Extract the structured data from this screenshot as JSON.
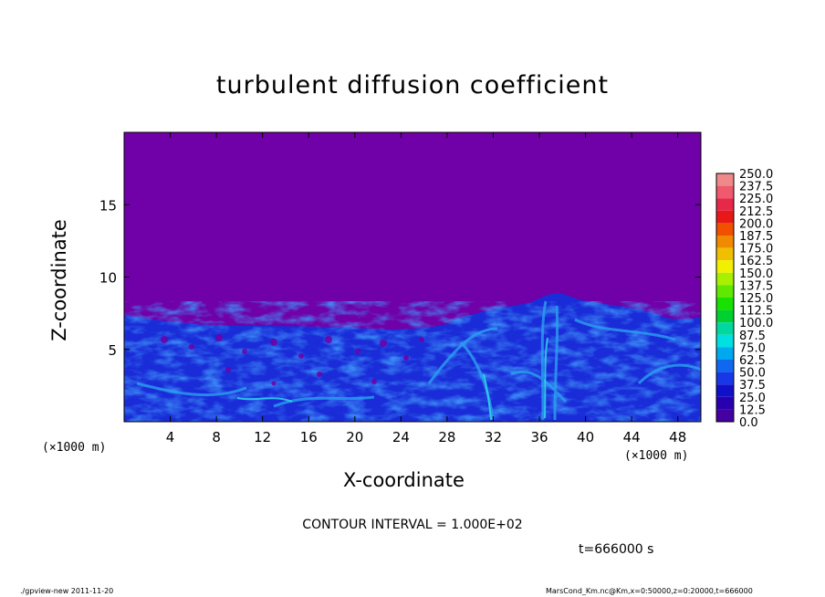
{
  "chart_data": {
    "type": "heatmap",
    "title": "turbulent diffusion coefficient",
    "xlabel": "X-coordinate",
    "ylabel": "Z-coordinate",
    "x_unit_label": "(×1000 m)",
    "xlim": [
      0,
      50
    ],
    "ylim": [
      0,
      20
    ],
    "x_ticks": [
      4,
      8,
      12,
      16,
      20,
      24,
      28,
      32,
      36,
      40,
      44,
      48
    ],
    "y_ticks": [
      5,
      10,
      15
    ],
    "colorbar": {
      "levels": [
        "250.0",
        "237.5",
        "225.0",
        "212.5",
        "200.0",
        "187.5",
        "175.0",
        "162.5",
        "150.0",
        "137.5",
        "125.0",
        "112.5",
        "100.0",
        "87.5",
        "75.0",
        "62.5",
        "50.0",
        "37.5",
        "25.0",
        "12.5",
        "0.0"
      ],
      "colors": [
        "#f08a8a",
        "#f05a6e",
        "#e82848",
        "#e81818",
        "#f05000",
        "#f08a00",
        "#f0c000",
        "#f0f000",
        "#a8f000",
        "#60e800",
        "#18e000",
        "#00d030",
        "#00d8a0",
        "#00e0e0",
        "#00a8f0",
        "#1068f0",
        "#1838e8",
        "#1010c8",
        "#2800b0",
        "#4400a0"
      ],
      "background": "#7000a8"
    },
    "field_features": {
      "background_value": 0.0,
      "turbulent_layer_top_left": 7.5,
      "turbulent_layer_top_right": 7.3,
      "max_plume_height": 9.2
    },
    "contour_interval": "CONTOUR INTERVAL = 1.000E+02",
    "time_label": "t=666000 s"
  },
  "footer": {
    "left": "./gpview-new   2011-11-20",
    "right": "MarsCond_Km.nc@Km,x=0:50000,z=0:20000,t=666000"
  }
}
